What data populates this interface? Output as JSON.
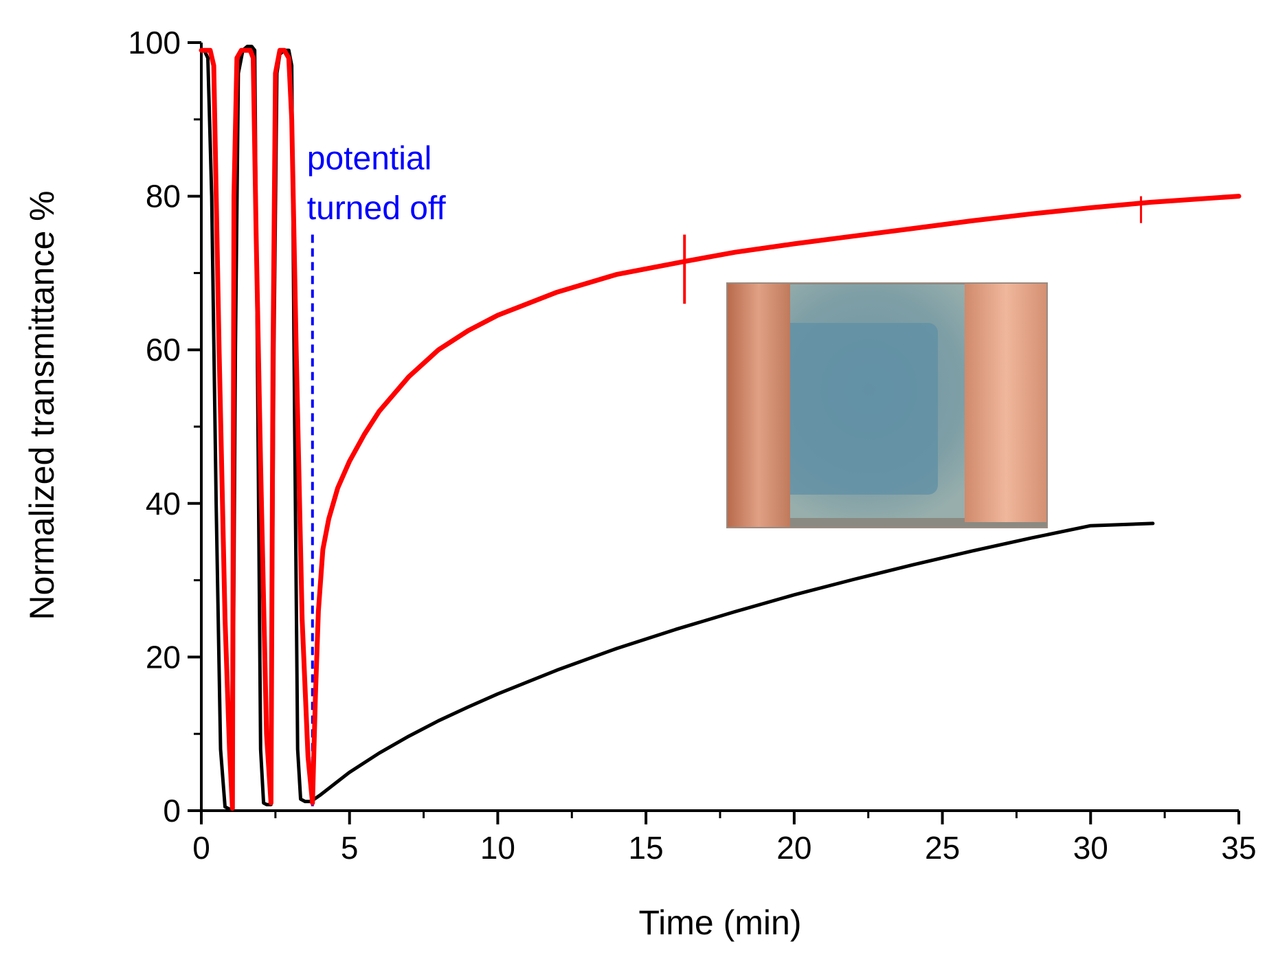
{
  "chart_data": {
    "type": "line",
    "title": "",
    "xlabel": "Time (min)",
    "ylabel": "Normalized transmittance %",
    "xlim": [
      0,
      35
    ],
    "ylim": [
      0,
      100
    ],
    "xticks": [
      0,
      5,
      10,
      15,
      20,
      25,
      30,
      35
    ],
    "yticks": [
      0,
      20,
      40,
      60,
      80,
      100
    ],
    "grid": false,
    "legend": "none",
    "series": [
      {
        "name": "black",
        "color": "#000000",
        "x": [
          0,
          0.1,
          0.22,
          0.35,
          0.5,
          0.65,
          0.8,
          0.95,
          1.05,
          1.15,
          1.25,
          1.4,
          1.55,
          1.7,
          1.8,
          1.9,
          2.0,
          2.1,
          2.2,
          2.35,
          2.45,
          2.55,
          2.65,
          2.8,
          2.95,
          3.05,
          3.15,
          3.25,
          3.35,
          3.5,
          3.7,
          4.0,
          4.5,
          5,
          6,
          7,
          8,
          9,
          10,
          12,
          14,
          16,
          18,
          20,
          22,
          24,
          26,
          28,
          30,
          32.1
        ],
        "y": [
          99,
          99,
          98,
          80,
          40,
          8,
          0.5,
          0.2,
          0.2,
          60,
          96,
          99,
          99.5,
          99.5,
          99,
          55,
          8,
          1,
          0.8,
          0.8,
          60,
          96,
          98.5,
          99,
          99,
          97,
          50,
          8,
          1.5,
          1.2,
          1.2,
          2,
          3.5,
          5,
          7.5,
          9.7,
          11.7,
          13.5,
          15.2,
          18.3,
          21.1,
          23.6,
          25.9,
          28.1,
          30.1,
          32,
          33.8,
          35.5,
          37.1,
          37.4
        ]
      },
      {
        "name": "red",
        "color": "#ff0000",
        "x": [
          0,
          0.3,
          0.42,
          0.6,
          0.8,
          0.95,
          1.05,
          1.1,
          1.2,
          1.35,
          1.5,
          1.65,
          1.75,
          1.85,
          2.0,
          2.2,
          2.35,
          2.42,
          2.5,
          2.65,
          2.8,
          2.95,
          3.05,
          3.2,
          3.4,
          3.6,
          3.75,
          3.85,
          3.95,
          4.1,
          4.3,
          4.6,
          5,
          5.5,
          6,
          7,
          8,
          9,
          10,
          12,
          14,
          16.3,
          18,
          20,
          22,
          24,
          26,
          28,
          30,
          32,
          35
        ],
        "y": [
          99,
          99,
          97,
          60,
          25,
          8,
          0.3,
          80,
          98,
          99,
          99,
          99,
          98,
          75,
          45,
          10,
          1,
          60,
          96,
          99,
          99,
          98,
          90,
          60,
          25,
          7,
          1,
          15,
          26,
          34,
          38,
          42,
          45.5,
          49,
          52,
          56.5,
          60,
          62.5,
          64.5,
          67.5,
          69.8,
          71.5,
          72.7,
          73.8,
          74.8,
          75.8,
          76.8,
          77.7,
          78.5,
          79.2,
          80
        ]
      }
    ],
    "annotations": [
      {
        "lines": [
          "potential",
          "turned off"
        ],
        "x": 3.75,
        "color": "#0000ff",
        "style": "dashed vertical line"
      }
    ],
    "inset": {
      "description": "photo of electrochromic device with copper tape electrodes"
    }
  }
}
